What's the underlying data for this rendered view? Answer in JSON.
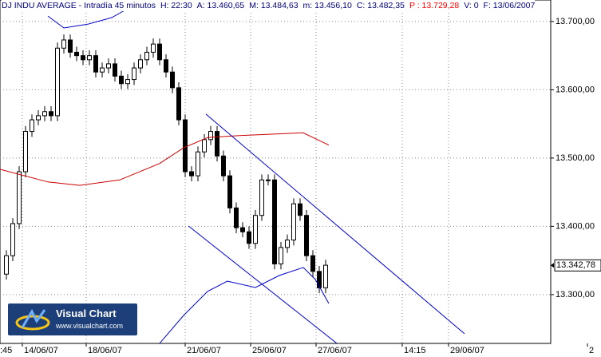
{
  "chart_data": {
    "type": "candlestick",
    "title": "DJ INDU AVERAGE - Intradía 45 minutos",
    "header_fields": [
      "H: 22:30",
      "A: 13.460,65",
      "M: 13.484,63",
      "m: 13.456,10",
      "C: 13.482,35",
      "P : 13.729,28",
      "V: 0",
      "F: 13/06/2007"
    ],
    "header_colors": [
      "#000080",
      "#000080",
      "#000080",
      "#000080",
      "#000080",
      "#ff0000",
      "#000080",
      "#000080"
    ],
    "open": [
      13330,
      13357,
      13404,
      13480,
      13539,
      13556,
      13562,
      13568,
      13562,
      13661,
      13673,
      13655,
      13650,
      13644,
      13650,
      13626,
      13632,
      13638,
      13620,
      13609,
      13615,
      13632,
      13644,
      13655,
      13667,
      13644,
      13626,
      13603,
      13556,
      13480,
      13474,
      13509,
      13527,
      13539,
      13503,
      13474,
      13427,
      13398,
      13392,
      13375,
      13416,
      13468,
      13468,
      13345,
      13369,
      13380,
      13433,
      13416,
      13357,
      13334,
      13310
    ],
    "high": [
      13365,
      13412,
      13488,
      13547,
      13564,
      13570,
      13576,
      13576,
      13669,
      13681,
      13681,
      13663,
      13658,
      13658,
      13658,
      13640,
      13646,
      13646,
      13628,
      13623,
      13640,
      13652,
      13663,
      13675,
      13675,
      13652,
      13634,
      13611,
      13564,
      13488,
      13517,
      13535,
      13547,
      13547,
      13511,
      13482,
      13435,
      13406,
      13400,
      13424,
      13476,
      13476,
      13476,
      13377,
      13388,
      13441,
      13441,
      13424,
      13365,
      13342,
      13351
    ],
    "low": [
      13322,
      13349,
      13396,
      13472,
      13531,
      13548,
      13554,
      13554,
      13554,
      13653,
      13647,
      13642,
      13636,
      13636,
      13618,
      13618,
      13624,
      13612,
      13601,
      13601,
      13607,
      13624,
      13636,
      13647,
      13636,
      13618,
      13595,
      13548,
      13472,
      13466,
      13466,
      13501,
      13519,
      13495,
      13466,
      13419,
      13390,
      13384,
      13367,
      13367,
      13408,
      13460,
      13337,
      13337,
      13361,
      13372,
      13408,
      13349,
      13326,
      13302,
      13302
    ],
    "close": [
      13357,
      13404,
      13480,
      13539,
      13556,
      13562,
      13568,
      13562,
      13661,
      13673,
      13655,
      13650,
      13644,
      13650,
      13626,
      13632,
      13638,
      13620,
      13609,
      13615,
      13632,
      13644,
      13655,
      13667,
      13644,
      13626,
      13603,
      13556,
      13480,
      13474,
      13509,
      13527,
      13539,
      13503,
      13474,
      13427,
      13398,
      13392,
      13375,
      13416,
      13468,
      13468,
      13345,
      13369,
      13380,
      13433,
      13416,
      13357,
      13334,
      13310,
      13343
    ],
    "up_color": "#ffffff",
    "down_color": "#000000",
    "lines": [
      {
        "color": "#cc0000",
        "x": [
          -1,
          6.5,
          11.5,
          17.75,
          24,
          27.75,
          31.5,
          36.5,
          41.5,
          46.5,
          50.5
        ],
        "values": [
          13483.5,
          13465,
          13460,
          13468,
          13492,
          13515,
          13530,
          13533,
          13535,
          13537,
          13519
        ]
      },
      {
        "color": "#0000cc",
        "x": [
          6.5,
          9,
          12.75,
          16.5,
          18.75
        ],
        "values": [
          13708,
          13690.6,
          13696,
          13705.8,
          13717.5
        ]
      },
      {
        "color": "#0000cc",
        "x": [
          24,
          27.75,
          31.5,
          34.6,
          39,
          42.75,
          46.5,
          48.4,
          50.5
        ],
        "values": [
          13228.6,
          13269.5,
          13304.6,
          13319.8,
          13310.4,
          13328,
          13339.7,
          13322,
          13287
        ]
      },
      {
        "color": "#0000cc",
        "x": [
          31.25,
          71.75
        ],
        "values": [
          13564.3,
          13242.7
        ]
      },
      {
        "color": "#0000cc",
        "x": [
          28.5,
          51.75
        ],
        "values": [
          13400.6,
          13228.6
        ]
      }
    ],
    "xlim": [
      -1,
      85.25
    ],
    "ylim": [
      13228.5,
      13731.5
    ],
    "yticks": [
      {
        "value": 13300,
        "label": "13.300,00"
      },
      {
        "value": 13400,
        "label": "13.400,00"
      },
      {
        "value": 13500,
        "label": "13.500,00"
      },
      {
        "value": 13600,
        "label": "13.600,00"
      },
      {
        "value": 13700,
        "label": "13.700,00"
      }
    ],
    "xticks": [
      {
        "value": -1.25,
        "label": ":45"
      },
      {
        "value": 2.5,
        "label": "14/06/07"
      },
      {
        "value": 12.5,
        "label": "18/06/07"
      },
      {
        "value": 28,
        "label": "21/06/07"
      },
      {
        "value": 38.25,
        "label": "25/06/07"
      },
      {
        "value": 48.5,
        "label": "27/06/07"
      },
      {
        "value": 62,
        "label": "14:15"
      },
      {
        "value": 69.25,
        "label": "29/06/07"
      },
      {
        "value": 91,
        "label": "2"
      }
    ],
    "last_value": {
      "value": 13342.78,
      "label": "13.342,78"
    },
    "grid": true,
    "watermark": {
      "title": "Visual Chart",
      "url": "www.visualchart.com"
    }
  }
}
